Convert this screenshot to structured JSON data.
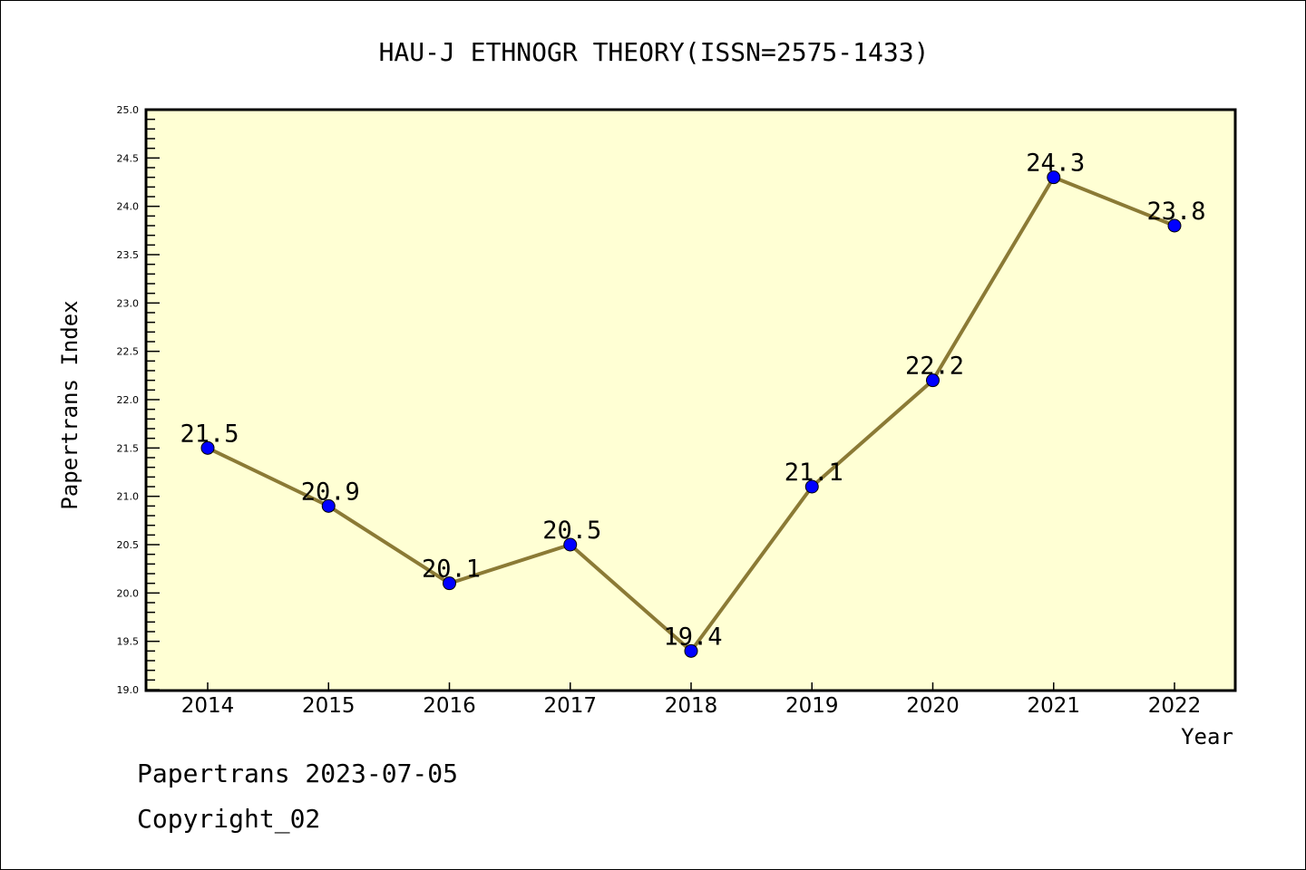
{
  "chart_data": {
    "type": "line",
    "title": "HAU-J ETHNOGR THEORY(ISSN=2575-1433)",
    "xlabel": "Year",
    "ylabel": "Papertrans Index",
    "categories": [
      "2014",
      "2015",
      "2016",
      "2017",
      "2018",
      "2019",
      "2020",
      "2021",
      "2022"
    ],
    "series": [
      {
        "name": "Papertrans Index",
        "values": [
          21.5,
          20.9,
          20.1,
          20.5,
          19.4,
          21.1,
          22.2,
          24.3,
          23.8
        ]
      }
    ],
    "data_labels": [
      "21.5",
      "20.9",
      "20.1",
      "20.5",
      "19.4",
      "21.1",
      "22.2",
      "24.3",
      "23.8"
    ],
    "ylim": [
      19.0,
      25.0
    ],
    "yticks": [
      "19.0",
      "19.5",
      "20.0",
      "20.5",
      "21.0",
      "21.5",
      "22.0",
      "22.5",
      "23.0",
      "23.5",
      "24.0",
      "24.5",
      "25.0"
    ],
    "grid": false,
    "colors": {
      "background": "#ffffd4",
      "line": "#8b7a35",
      "marker": "#0000ff"
    }
  },
  "footer": {
    "line1": "Papertrans 2023-07-05",
    "line2": "Copyright_02"
  }
}
